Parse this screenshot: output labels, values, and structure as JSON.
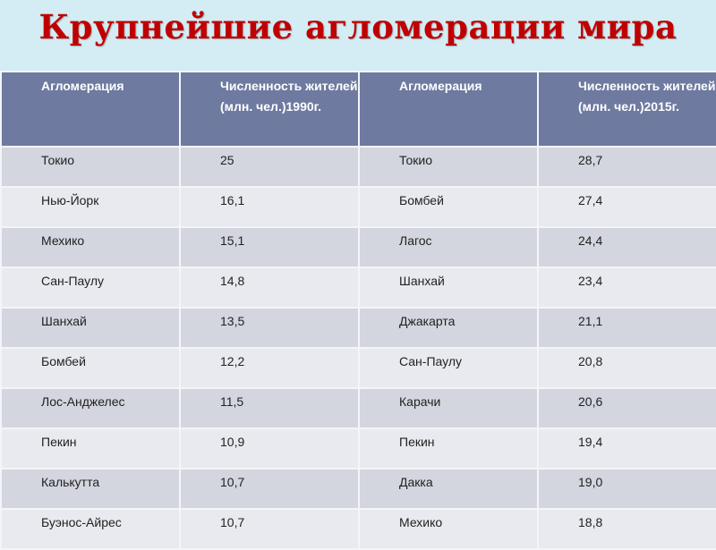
{
  "title": "Крупнейшие агломерации мира",
  "table": {
    "headers": [
      "Агломерация",
      "Численность жителей (млн. чел.)1990г.",
      "Агломерация",
      "Численность жителей (млн. чел.)2015г."
    ],
    "rows": [
      [
        "Токио",
        "25",
        "Токио",
        "28,7"
      ],
      [
        "Нью-Йорк",
        "16,1",
        "Бомбей",
        "27,4"
      ],
      [
        "Мехико",
        "15,1",
        "Лагос",
        "24,4"
      ],
      [
        "Сан-Паулу",
        "14,8",
        "Шанхай",
        "23,4"
      ],
      [
        "Шанхай",
        "13,5",
        "Джакарта",
        "21,1"
      ],
      [
        "Бомбей",
        "12,2",
        "Сан-Паулу",
        "20,8"
      ],
      [
        "Лос-Анджелес",
        "11,5",
        "Карачи",
        "20,6"
      ],
      [
        "Пекин",
        "10,9",
        "Пекин",
        "19,4"
      ],
      [
        "Калькутта",
        "10,7",
        "Дакка",
        "19,0"
      ],
      [
        "Буэнос-Айрес",
        "10,7",
        "Мехико",
        "18,8"
      ]
    ]
  },
  "colors": {
    "title": "#c00000",
    "header": "#6e7aa0",
    "background": "#d4ecf3",
    "row_odd": "#d3d6df",
    "row_even": "#e9eaef"
  }
}
